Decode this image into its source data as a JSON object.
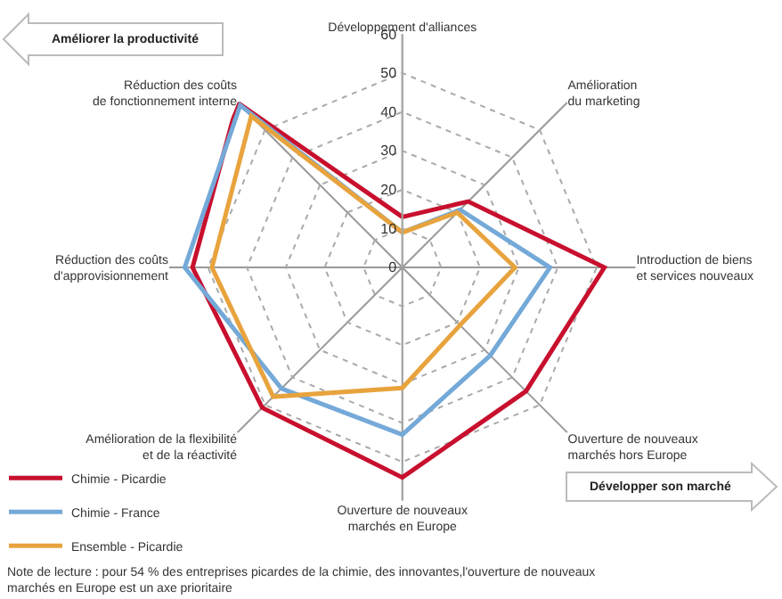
{
  "chart_data": {
    "type": "radar",
    "categories": [
      "Développement d'alliances",
      "Amélioration\ndu marketing",
      "Introduction de biens\net services nouveaux",
      "Ouverture de nouveaux\nmarchés hors Europe",
      "Ouverture de nouveaux\nmarchés en Europe",
      "Amélioration de la flexibilité\net de la réactivité",
      "Réduction des coûts\nd'approvisionnement",
      "Réduction des coûts\nde fonctionnement interne"
    ],
    "series": [
      {
        "name": "Chimie - Picardie",
        "color": "#c8102e",
        "values": [
          13,
          24,
          52,
          45,
          54,
          51,
          54,
          60
        ]
      },
      {
        "name": "Chimie - France",
        "color": "#74a9d8",
        "values": [
          9,
          21,
          38,
          32,
          43,
          44,
          56,
          59
        ]
      },
      {
        "name": "Ensemble - Picardie",
        "color": "#e8a33d",
        "values": [
          9,
          20,
          29,
          21,
          31,
          47,
          49,
          55
        ]
      }
    ],
    "ylim": [
      0,
      60
    ],
    "yticks": [
      0,
      10,
      20,
      30,
      40,
      50,
      60
    ],
    "grid": true,
    "legend": "bottom left",
    "line_style": "solid",
    "marker": "none",
    "annotations": [
      "Améliorer la productivité",
      "Développer son marché",
      "Note de lecture : pour 54 % des entreprises picardes de la chimie, des innovantes,l'ouverture de nouveaux marchés en Europe est un axe prioritaire"
    ]
  }
}
